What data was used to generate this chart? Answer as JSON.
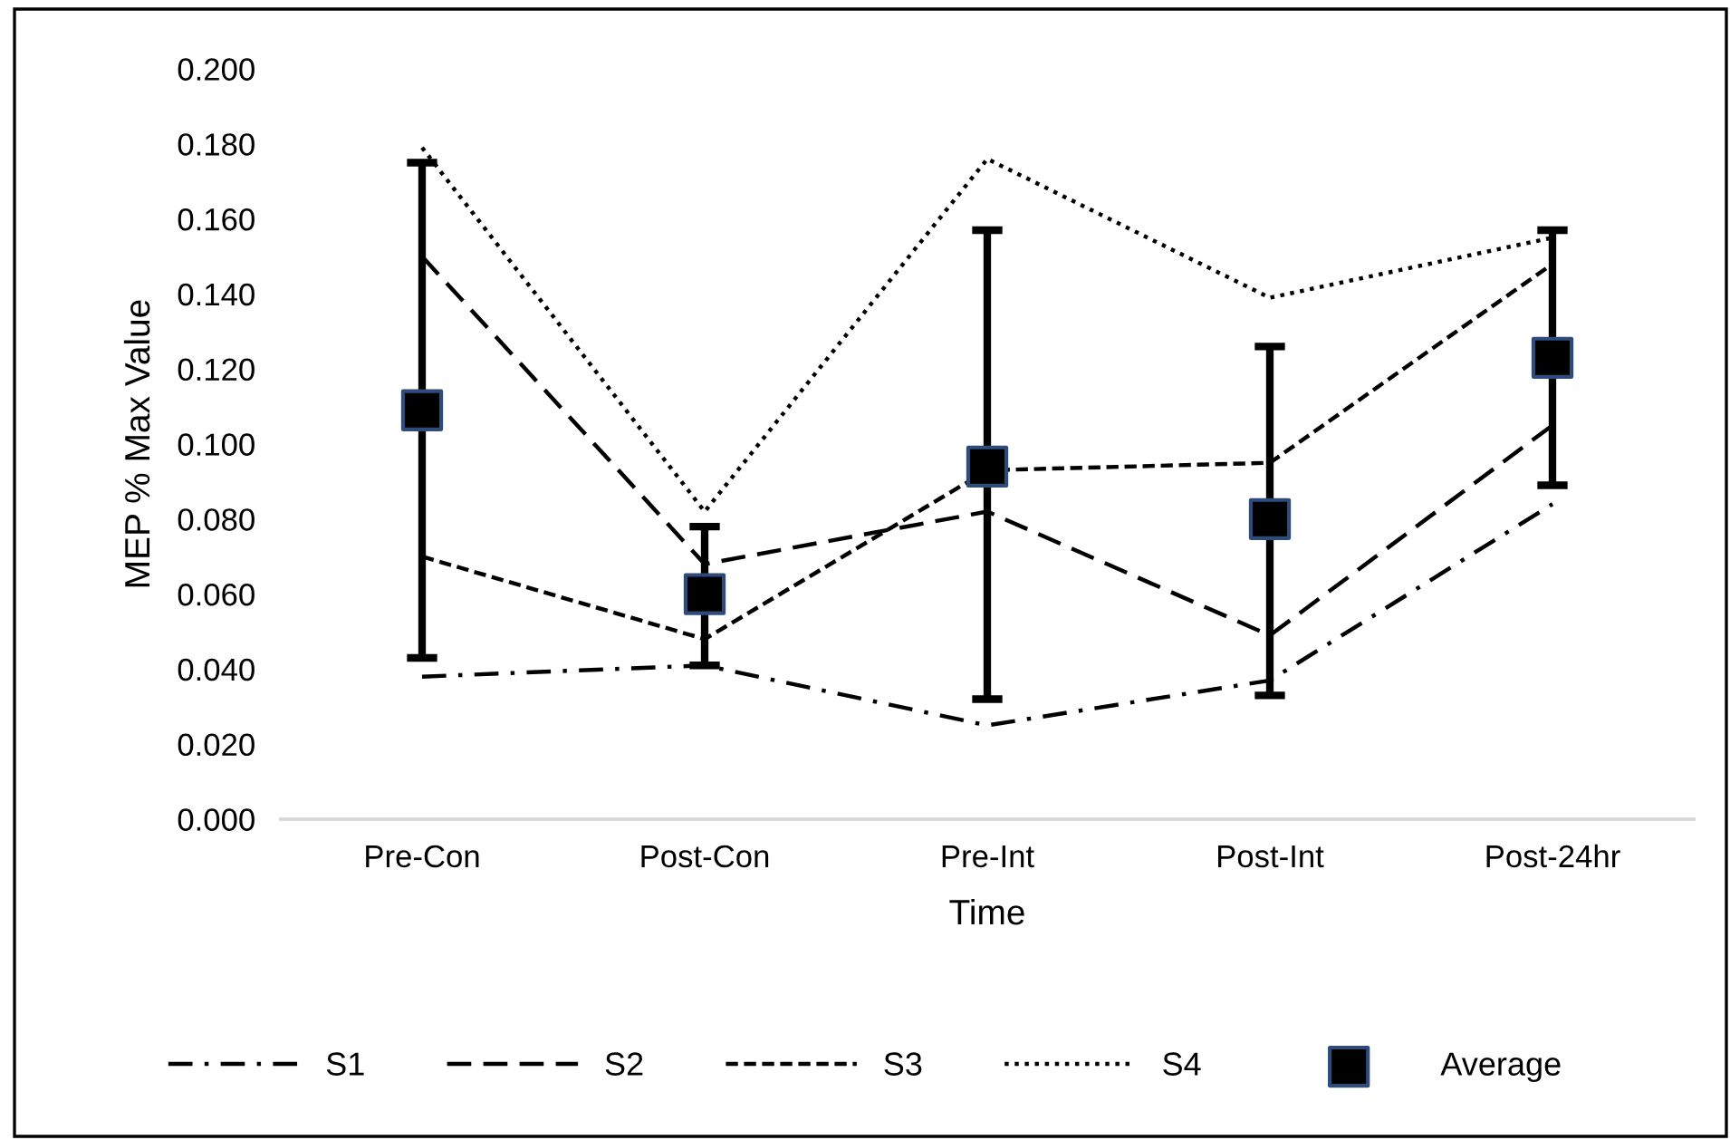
{
  "chart_data": {
    "type": "line",
    "ylabel": "MEP % Max Value",
    "xlabel": "Time",
    "categories": [
      "Pre-Con",
      "Post-Con",
      "Pre-Int",
      "Post-Int",
      "Post-24hr"
    ],
    "series": [
      {
        "name": "S1",
        "color": "#000000",
        "line_style": "dashdot",
        "marker": "none",
        "values": [
          0.038,
          0.041,
          0.025,
          0.037,
          0.084
        ]
      },
      {
        "name": "S2",
        "color": "#000000",
        "line_style": "dashed",
        "marker": "none",
        "values": [
          0.15,
          0.068,
          0.082,
          0.049,
          0.105
        ]
      },
      {
        "name": "S3",
        "color": "#000000",
        "line_style": "shortdash",
        "marker": "none",
        "values": [
          0.07,
          0.048,
          0.093,
          0.095,
          0.148
        ]
      },
      {
        "name": "S4",
        "color": "#000000",
        "line_style": "dotted",
        "marker": "none",
        "values": [
          0.179,
          0.082,
          0.176,
          0.139,
          0.155
        ]
      },
      {
        "name": "Average",
        "type": "scatter",
        "color": "#000000",
        "marker": "square",
        "values": [
          0.109,
          0.06,
          0.094,
          0.08,
          0.123
        ],
        "errors": [
          [
            0.043,
            0.175
          ],
          [
            0.041,
            0.078
          ],
          [
            0.032,
            0.157
          ],
          [
            0.033,
            0.126
          ],
          [
            0.089,
            0.157
          ]
        ]
      }
    ],
    "ylim": [
      0,
      0.2
    ],
    "yticks": [
      {
        "value": 0,
        "label": "0.000"
      },
      {
        "value": 0.02,
        "label": "0.020"
      },
      {
        "value": 0.04,
        "label": "0.040"
      },
      {
        "value": 0.06,
        "label": "0.060"
      },
      {
        "value": 0.08,
        "label": "0.080"
      },
      {
        "value": 0.1,
        "label": "0.100"
      },
      {
        "value": 0.12,
        "label": "0.120"
      },
      {
        "value": 0.14,
        "label": "0.140"
      },
      {
        "value": 0.16,
        "label": "0.160"
      },
      {
        "value": 0.18,
        "label": "0.180"
      },
      {
        "value": 0.2,
        "label": "0.200"
      }
    ],
    "grid": false,
    "legend": "bottom"
  }
}
